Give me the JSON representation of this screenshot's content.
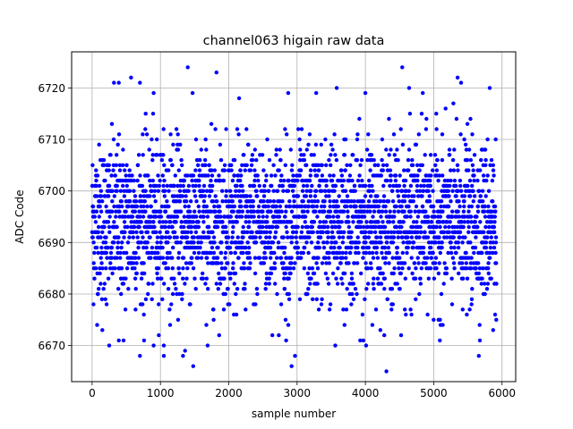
{
  "chart_data": {
    "type": "scatter",
    "title": "channel063 higain raw data",
    "xlabel": "sample number",
    "ylabel": "ADC Code",
    "xlim": [
      -300,
      6200
    ],
    "ylim": [
      6663,
      6727
    ],
    "xticks": [
      0,
      1000,
      2000,
      3000,
      4000,
      5000,
      6000
    ],
    "yticks": [
      6670,
      6680,
      6690,
      6700,
      6710,
      6720
    ],
    "xtick_labels": [
      "0",
      "1000",
      "2000",
      "3000",
      "4000",
      "5000",
      "6000"
    ],
    "ytick_labels": [
      "6670",
      "6680",
      "6690",
      "6700",
      "6710",
      "6720"
    ],
    "grid": true,
    "legend": "none",
    "marker_color": "#0000ff",
    "n_samples": 5920,
    "x_range": [
      0,
      5920
    ],
    "bulk_range": [
      6680,
      6712
    ],
    "notable_points": [
      {
        "x": 1400,
        "y": 6724
      },
      {
        "x": 1820,
        "y": 6723
      },
      {
        "x": 4540,
        "y": 6724
      },
      {
        "x": 570,
        "y": 6722
      },
      {
        "x": 5350,
        "y": 6722
      },
      {
        "x": 320,
        "y": 6721
      },
      {
        "x": 390,
        "y": 6721
      },
      {
        "x": 700,
        "y": 6721
      },
      {
        "x": 5400,
        "y": 6721
      },
      {
        "x": 3580,
        "y": 6720
      },
      {
        "x": 4640,
        "y": 6720
      },
      {
        "x": 5820,
        "y": 6720
      },
      {
        "x": 900,
        "y": 6719
      },
      {
        "x": 2870,
        "y": 6719
      },
      {
        "x": 3280,
        "y": 6719
      },
      {
        "x": 4000,
        "y": 6719
      },
      {
        "x": 4840,
        "y": 6719
      },
      {
        "x": 1480,
        "y": 6666
      },
      {
        "x": 2920,
        "y": 6666
      },
      {
        "x": 2970,
        "y": 6668
      },
      {
        "x": 5660,
        "y": 6668
      },
      {
        "x": 1330,
        "y": 6668
      },
      {
        "x": 1360,
        "y": 6669
      },
      {
        "x": 250,
        "y": 6670
      },
      {
        "x": 900,
        "y": 6670
      },
      {
        "x": 1050,
        "y": 6670
      },
      {
        "x": 1690,
        "y": 6670
      },
      {
        "x": 3560,
        "y": 6670
      },
      {
        "x": 390,
        "y": 6671
      },
      {
        "x": 460,
        "y": 6671
      },
      {
        "x": 760,
        "y": 6671
      },
      {
        "x": 2840,
        "y": 6671
      },
      {
        "x": 3970,
        "y": 6671
      },
      {
        "x": 5090,
        "y": 6671
      },
      {
        "x": 150,
        "y": 6673
      },
      {
        "x": 5870,
        "y": 6673
      }
    ]
  }
}
